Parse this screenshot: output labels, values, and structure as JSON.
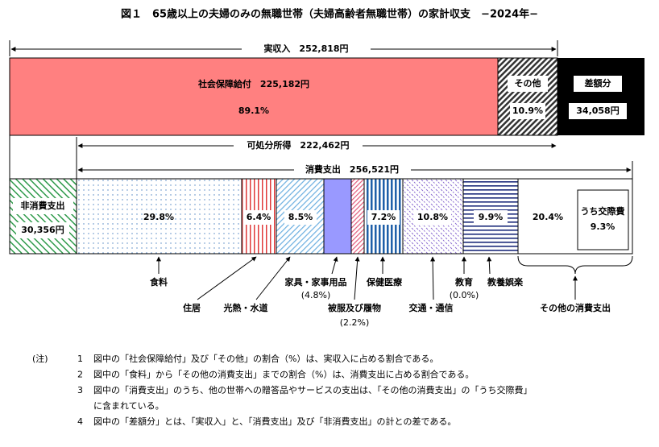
{
  "title": "図１　65歳以上の夫婦のみの無職世帯（夫婦高齢者無職世帯）の家計収支　−2024年−",
  "income_bar": {
    "total": "実収入　252,818円",
    "social_security": {
      "label": "社会保障給付　225,182円",
      "share": "89.1%"
    },
    "other": {
      "label": "その他",
      "share": "10.9%"
    },
    "deficit": {
      "label": "差額分",
      "amount": "34,058円"
    }
  },
  "disposable_income": "可処分所得　222,462円",
  "consumption_total": "消費支出　256,521円",
  "non_consumption": {
    "label": "非消費支出",
    "amount": "30,356円"
  },
  "segments": [
    {
      "label": "食料",
      "share": "29.8%"
    },
    {
      "label": "住居",
      "share": "6.4%"
    },
    {
      "label": "光熱・水道",
      "share": "8.5%"
    },
    {
      "label": "家具・家事用品",
      "share": "(4.8%)"
    },
    {
      "label": "被服及び履物",
      "share": "(2.2%)"
    },
    {
      "label": "保健医療",
      "share": "7.2%"
    },
    {
      "label": "交通・通信",
      "share": "10.8%"
    },
    {
      "label": "教育",
      "share": "(0.0%)"
    },
    {
      "label": "教養娯楽",
      "share": "9.9%"
    },
    {
      "label": "その他の消費支出",
      "share": "20.4%"
    }
  ],
  "entertainment": {
    "label": "うち交際費",
    "share": "9.3%"
  },
  "notes": {
    "heading": "(注)",
    "items": [
      {
        "number": "1",
        "lines": [
          "図中の「社会保障給付」及び「その他」の割合（%）は、実収入に占める割合である。"
        ]
      },
      {
        "number": "2",
        "lines": [
          "図中の「食料」から「その他の消費支出」までの割合（%）は、消費支出に占める割合である。"
        ]
      },
      {
        "number": "3",
        "lines": [
          "図中の「消費支出」のうち、他の世帯への贈答品やサービスの支出は、「その他の消費支出」の「うち交際費」",
          "に含まれている。"
        ]
      },
      {
        "number": "4",
        "lines": [
          "図中の「差額分」とは、「実収入」と、「消費支出」及び「非消費支出」の計との差である。"
        ]
      }
    ]
  }
}
